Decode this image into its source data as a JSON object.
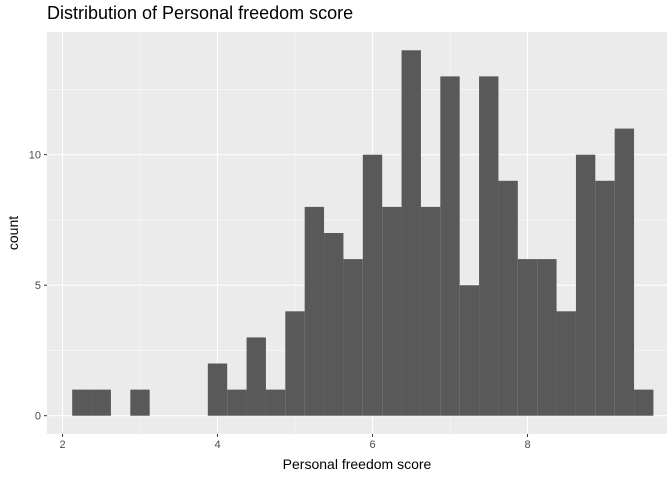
{
  "chart_data": {
    "type": "bar",
    "title": "Distribution of Personal freedom score",
    "xlabel": "Personal freedom score",
    "ylabel": "count",
    "xlim": [
      1.8,
      9.8
    ],
    "ylim": [
      -0.7,
      14.7
    ],
    "x_ticks": [
      2,
      4,
      6,
      8
    ],
    "x_tick_labels": [
      "2",
      "4",
      "6",
      "8"
    ],
    "y_ticks": [
      0,
      5,
      10
    ],
    "y_tick_labels": [
      "0",
      "5",
      "10"
    ],
    "grid": true,
    "bin_width": 0.25,
    "bins": [
      {
        "x": 2.25,
        "count": 1
      },
      {
        "x": 2.5,
        "count": 1
      },
      {
        "x": 3.0,
        "count": 1
      },
      {
        "x": 4.0,
        "count": 2
      },
      {
        "x": 4.25,
        "count": 1
      },
      {
        "x": 4.5,
        "count": 3
      },
      {
        "x": 4.75,
        "count": 1
      },
      {
        "x": 5.0,
        "count": 4
      },
      {
        "x": 5.25,
        "count": 8
      },
      {
        "x": 5.5,
        "count": 7
      },
      {
        "x": 5.75,
        "count": 6
      },
      {
        "x": 6.0,
        "count": 10
      },
      {
        "x": 6.25,
        "count": 8
      },
      {
        "x": 6.5,
        "count": 14
      },
      {
        "x": 6.75,
        "count": 8
      },
      {
        "x": 7.0,
        "count": 13
      },
      {
        "x": 7.25,
        "count": 5
      },
      {
        "x": 7.5,
        "count": 13
      },
      {
        "x": 7.75,
        "count": 9
      },
      {
        "x": 8.0,
        "count": 6
      },
      {
        "x": 8.25,
        "count": 6
      },
      {
        "x": 8.5,
        "count": 4
      },
      {
        "x": 8.75,
        "count": 10
      },
      {
        "x": 9.0,
        "count": 9
      },
      {
        "x": 9.25,
        "count": 11
      },
      {
        "x": 9.5,
        "count": 1
      }
    ],
    "colors": {
      "bar": "#595959",
      "panel": "#ebebeb",
      "grid_major": "#ffffff",
      "tick": "#333333"
    }
  }
}
